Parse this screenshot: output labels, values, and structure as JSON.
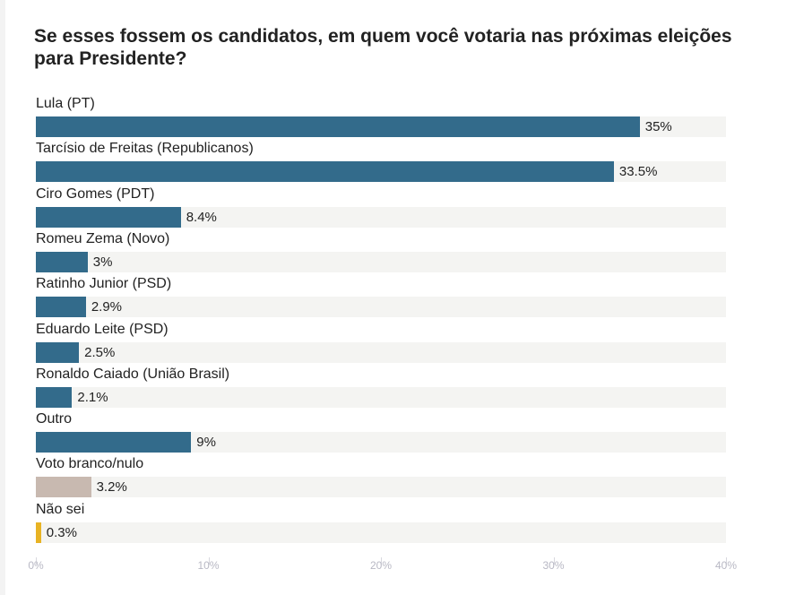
{
  "chart_data": {
    "type": "bar",
    "orientation": "horizontal",
    "title": "Se esses fossem os candidatos, em quem você votaria nas próximas eleições para Presidente?",
    "categories": [
      "Lula (PT)",
      "Tarcísio de Freitas (Republicanos)",
      "Ciro Gomes (PDT)",
      "Romeu Zema (Novo)",
      "Ratinho Junior (PSD)",
      "Eduardo Leite (PSD)",
      "Ronaldo Caiado (União Brasil)",
      "Outro",
      "Voto branco/nulo",
      "Não sei"
    ],
    "values": [
      35,
      33.5,
      8.4,
      3,
      2.9,
      2.5,
      2.1,
      9,
      3.2,
      0.3
    ],
    "value_labels": [
      "35%",
      "33.5%",
      "8.4%",
      "3%",
      "2.9%",
      "2.5%",
      "2.1%",
      "9%",
      "3.2%",
      "0.3%"
    ],
    "colors": [
      "#336b8b",
      "#336b8b",
      "#336b8b",
      "#336b8b",
      "#336b8b",
      "#336b8b",
      "#336b8b",
      "#336b8b",
      "#c8b9b0",
      "#e8b324"
    ],
    "track_color": "#f4f4f2",
    "xlim": [
      0,
      40
    ],
    "xticks": [
      0,
      10,
      20,
      30,
      40
    ],
    "xtick_labels": [
      "0%",
      "10%",
      "20%",
      "30%",
      "40%"
    ],
    "xlabel": "",
    "ylabel": "",
    "grid": false
  }
}
